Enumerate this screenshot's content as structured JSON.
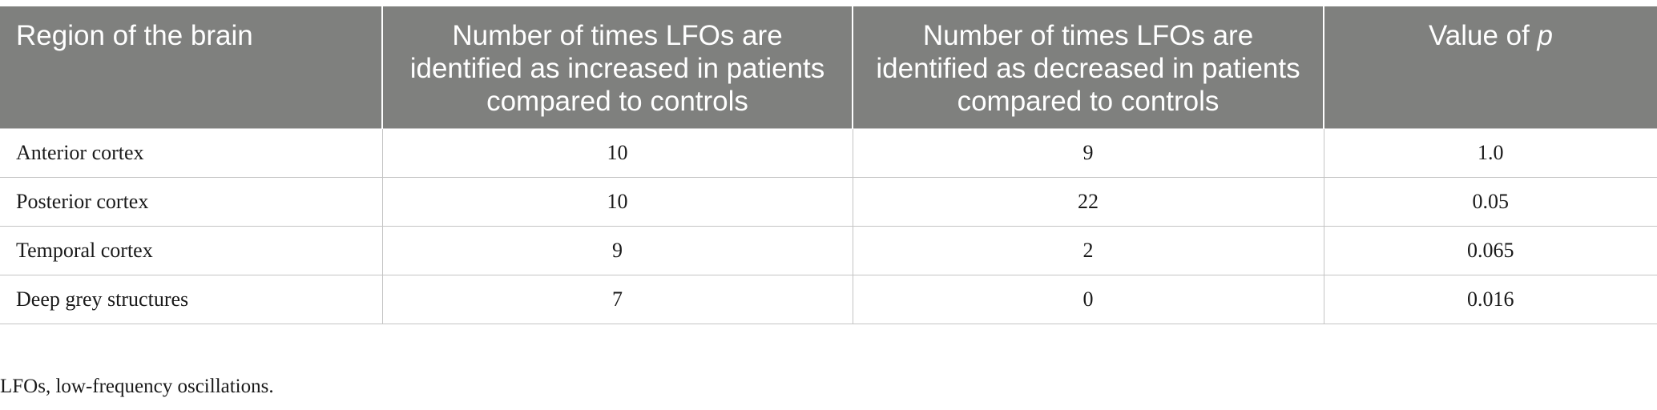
{
  "table": {
    "headers": [
      {
        "text": "Region of the brain"
      },
      {
        "text": "Number of times LFOs are identified as increased in patients compared to controls"
      },
      {
        "text": "Number of times LFOs are identified as decreased in patients compared to controls"
      },
      {
        "text": "Value of ",
        "italic_suffix": "p"
      }
    ],
    "rows": [
      {
        "region": "Anterior cortex",
        "increased": "10",
        "decreased": "9",
        "p_value": "1.0"
      },
      {
        "region": "Posterior cortex",
        "increased": "10",
        "decreased": "22",
        "p_value": "0.05"
      },
      {
        "region": "Temporal cortex",
        "increased": "9",
        "decreased": "2",
        "p_value": "0.065"
      },
      {
        "region": "Deep grey structures",
        "increased": "7",
        "decreased": "0",
        "p_value": "0.016"
      }
    ]
  },
  "footnote": "LFOs, low-frequency oscillations.",
  "colors": {
    "header_background": "#7f807e",
    "header_text": "#ffffff",
    "grid_lines": "#c4c4c4"
  }
}
